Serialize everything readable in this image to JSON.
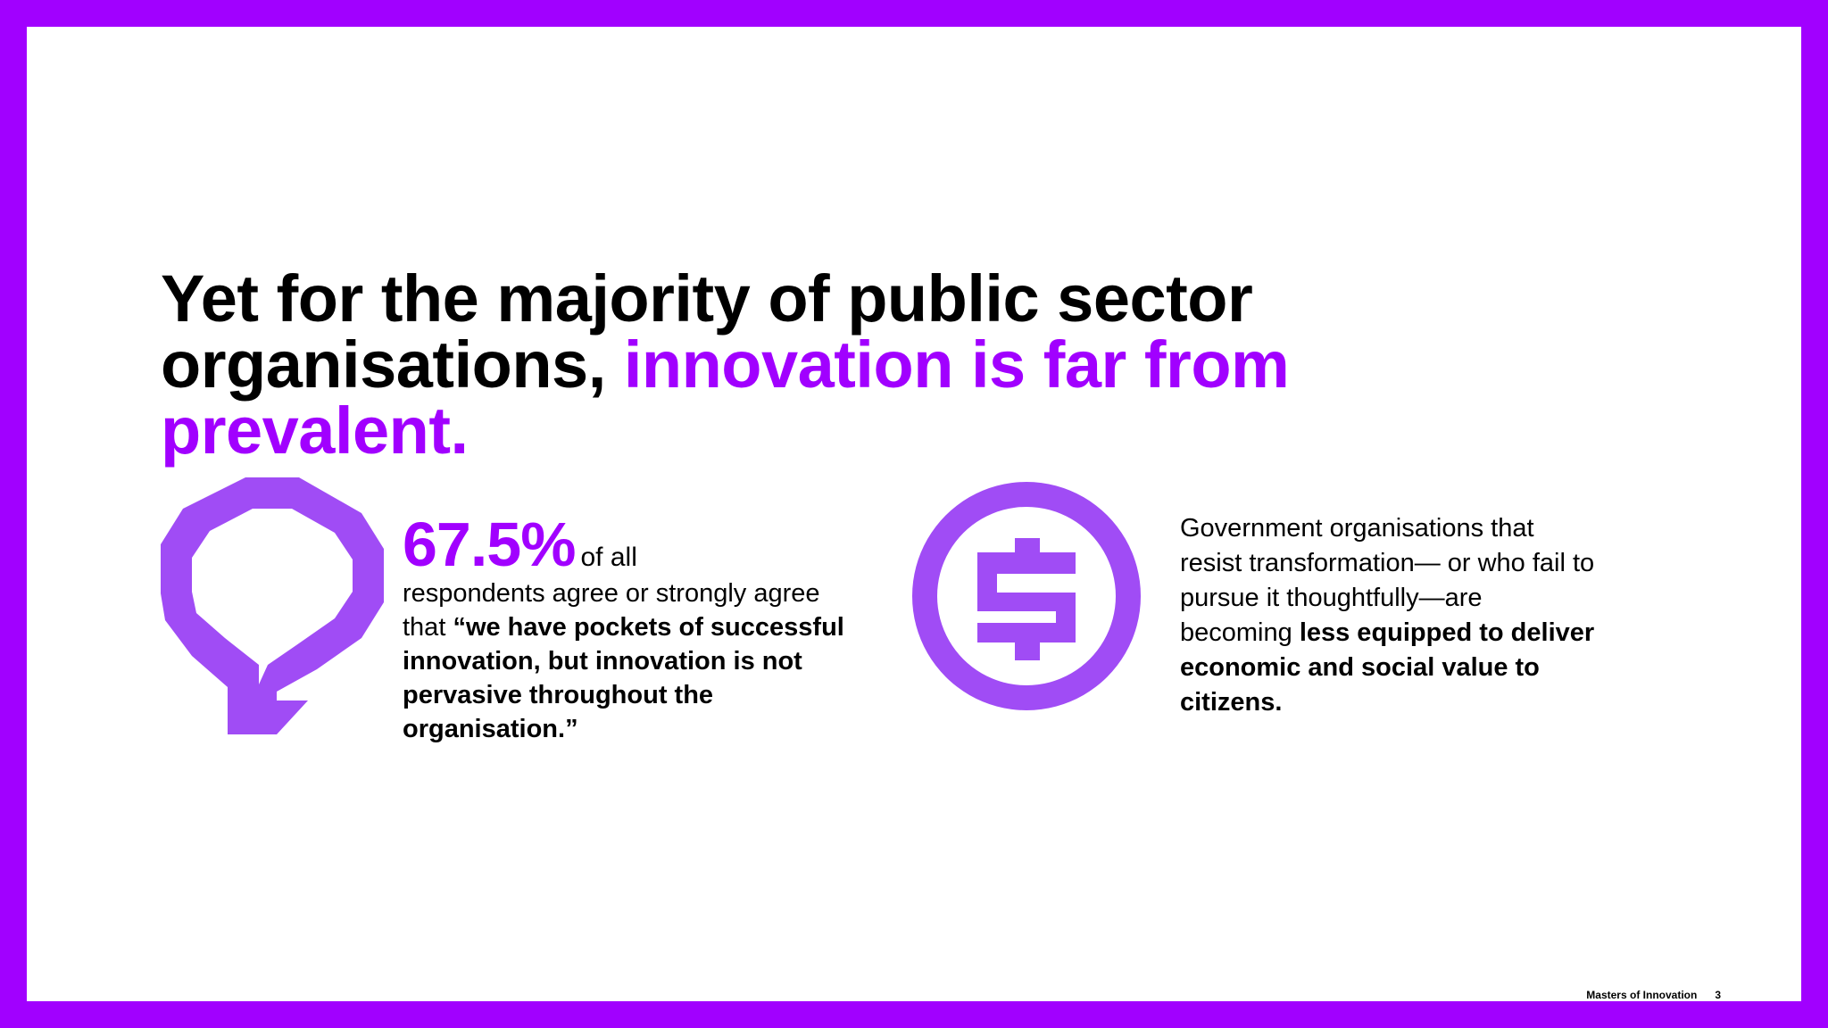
{
  "headline": {
    "line1": "Yet for the majority of public sector",
    "line2_plain": "organisations, ",
    "line2_highlight": "innovation is far from",
    "line3_highlight": "prevalent."
  },
  "stat": {
    "number": "67.5%",
    "tail": "of all",
    "body_plain": "respondents agree or strongly agree that ",
    "body_bold": "“we have pockets of successful innovation, but innovation is not pervasive throughout the organisation.”"
  },
  "government": {
    "body_plain": "Government organisations that resist transformation— or who fail to pursue it thoughtfully—are becoming ",
    "body_bold": "less equipped to deliver economic and social value to citizens."
  },
  "footer": {
    "title": "Masters of Innovation",
    "page": "3"
  },
  "icons": {
    "left": "lightbulb-icon",
    "right": "dollar-coin-icon"
  },
  "colors": {
    "accent": "#a100ff",
    "icon": "#a04cf5",
    "text": "#000000",
    "background": "#ffffff"
  }
}
